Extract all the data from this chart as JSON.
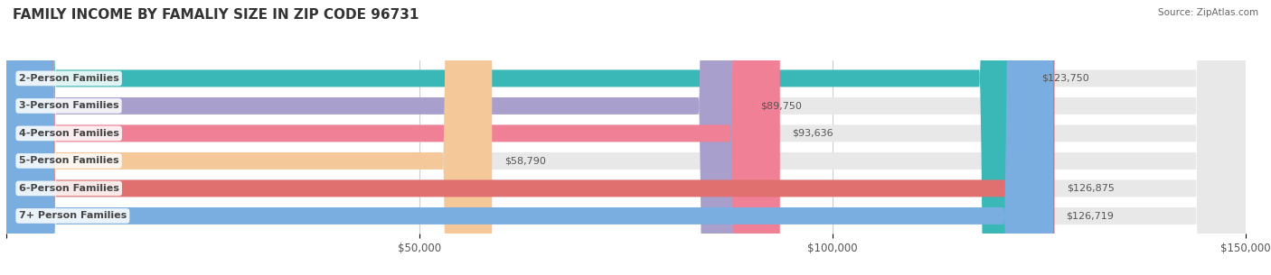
{
  "title": "FAMILY INCOME BY FAMALIY SIZE IN ZIP CODE 96731",
  "source": "Source: ZipAtlas.com",
  "categories": [
    "2-Person Families",
    "3-Person Families",
    "4-Person Families",
    "5-Person Families",
    "6-Person Families",
    "7+ Person Families"
  ],
  "values": [
    123750,
    89750,
    93636,
    58790,
    126875,
    126719
  ],
  "labels": [
    "$123,750",
    "$89,750",
    "$93,636",
    "$58,790",
    "$126,875",
    "$126,719"
  ],
  "bar_colors": [
    "#3ab8b8",
    "#a89fcc",
    "#f08096",
    "#f5c89a",
    "#e07070",
    "#7aaee0"
  ],
  "bar_bg_color": "#e8e8e8",
  "xlim": [
    0,
    150000
  ],
  "xticks": [
    0,
    50000,
    100000,
    150000
  ],
  "xticklabels": [
    "",
    "$50,000",
    "$100,000",
    "$150,000"
  ],
  "title_fontsize": 11,
  "label_fontsize": 8,
  "bar_height": 0.62,
  "figsize": [
    14.06,
    3.05
  ],
  "dpi": 100
}
